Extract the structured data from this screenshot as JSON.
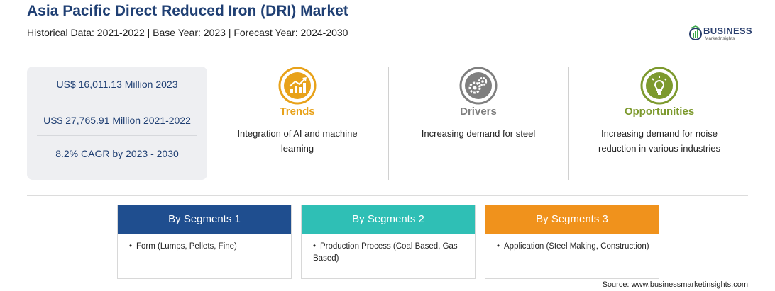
{
  "header": {
    "title": "Asia Pacific Direct Reduced Iron (DRI) Market",
    "subtitle": "Historical Data: 2021-2022 | Base Year: 2023 | Forecast Year: 2024-2030"
  },
  "logo": {
    "main": "BUSINESS",
    "sub": "MarketInsights",
    "colors": {
      "primary": "#2a3f6e",
      "accent": "#3aa64a"
    }
  },
  "stats": [
    {
      "text": "US$ 16,011.13 Million 2023"
    },
    {
      "text": "US$ 27,765.91 Million 2021-2022"
    },
    {
      "text": "8.2% CAGR by 2023 - 2030"
    }
  ],
  "columns": [
    {
      "icon": "trend-chart-icon",
      "title": "Trends",
      "color": "#e8a21a",
      "text": "Integration of AI and machine learning"
    },
    {
      "icon": "gears-icon",
      "title": "Drivers",
      "color": "#7f7f7f",
      "text": "Increasing demand for steel"
    },
    {
      "icon": "lightbulb-icon",
      "title": "Opportunities",
      "color": "#7d9a2e",
      "text": "Increasing demand for noise reduction in various industries"
    }
  ],
  "segments": [
    {
      "title": "By Segments 1",
      "color": "#1f4e8f",
      "bullet": "•",
      "item": "Form (Lumps, Pellets, Fine)"
    },
    {
      "title": "By Segments 2",
      "color": "#2fbfb5",
      "bullet": "•",
      "item": "Production Process (Coal Based, Gas Based)"
    },
    {
      "title": "By Segments 3",
      "color": "#f0921c",
      "bullet": "•",
      "item": "Application (Steel Making, Construction)"
    }
  ],
  "source": "Source: www.businessmarketinsights.com"
}
